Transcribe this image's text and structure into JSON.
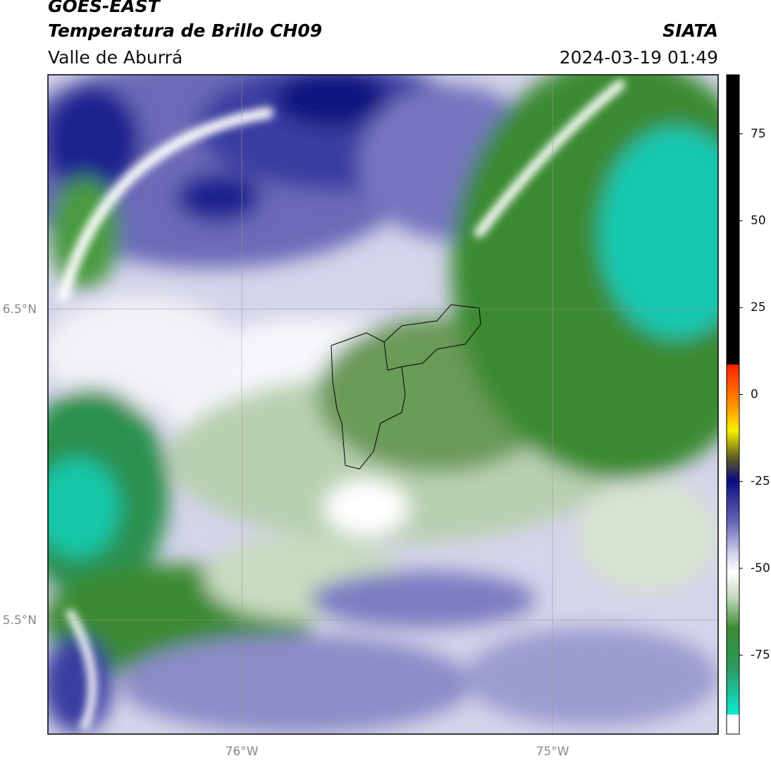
{
  "header": {
    "title": "GOES-EAST",
    "subtitle": "Temperatura de Brillo CH09",
    "source": "SIATA",
    "region": "Valle de Aburrá",
    "datetime": "2024-03-19 01:49"
  },
  "map": {
    "xlim": [
      -76.624,
      -74.467
    ],
    "ylim": [
      5.133,
      7.253
    ],
    "xticks": [
      {
        "value": -76,
        "label": "76°W"
      },
      {
        "value": -75,
        "label": "75°W"
      }
    ],
    "yticks": [
      {
        "value": 6.5,
        "label": "6.5°N"
      },
      {
        "value": 5.5,
        "label": "5.5°N"
      }
    ]
  },
  "colorbar": {
    "lim": [
      -97.7,
      92
    ],
    "ticks": [
      75,
      50,
      25,
      0,
      -25,
      -50,
      -75
    ]
  }
}
